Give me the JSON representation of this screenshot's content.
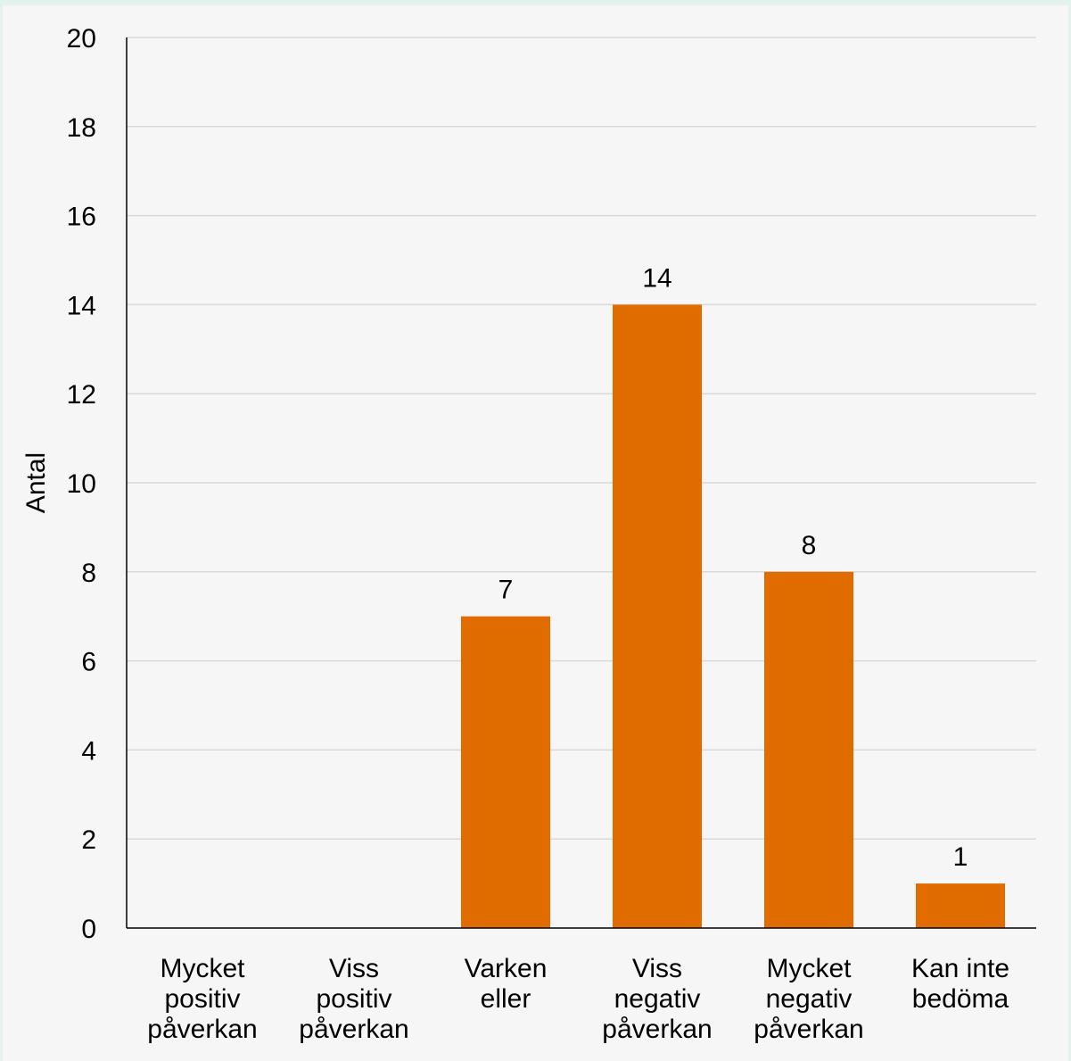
{
  "chart_data": {
    "type": "bar",
    "title": "",
    "xlabel": "",
    "ylabel": "Antal",
    "ylim": [
      0,
      20
    ],
    "ytick_step": 2,
    "grid": true,
    "categories": [
      [
        "Mycket",
        "positiv",
        "påverkan"
      ],
      [
        "Viss",
        "positiv",
        "påverkan"
      ],
      [
        "Varken",
        "eller"
      ],
      [
        "Viss",
        "negativ",
        "påverkan"
      ],
      [
        "Mycket",
        "negativ",
        "påverkan"
      ],
      [
        "Kan inte",
        "bedöma"
      ]
    ],
    "values": [
      null,
      null,
      7,
      14,
      8,
      1
    ],
    "data_labels": [
      "",
      "",
      "7",
      "14",
      "8",
      "1"
    ],
    "bar_color": "#e06c00",
    "gridline_color": "#d9d9d9",
    "axis_color": "#000000"
  }
}
